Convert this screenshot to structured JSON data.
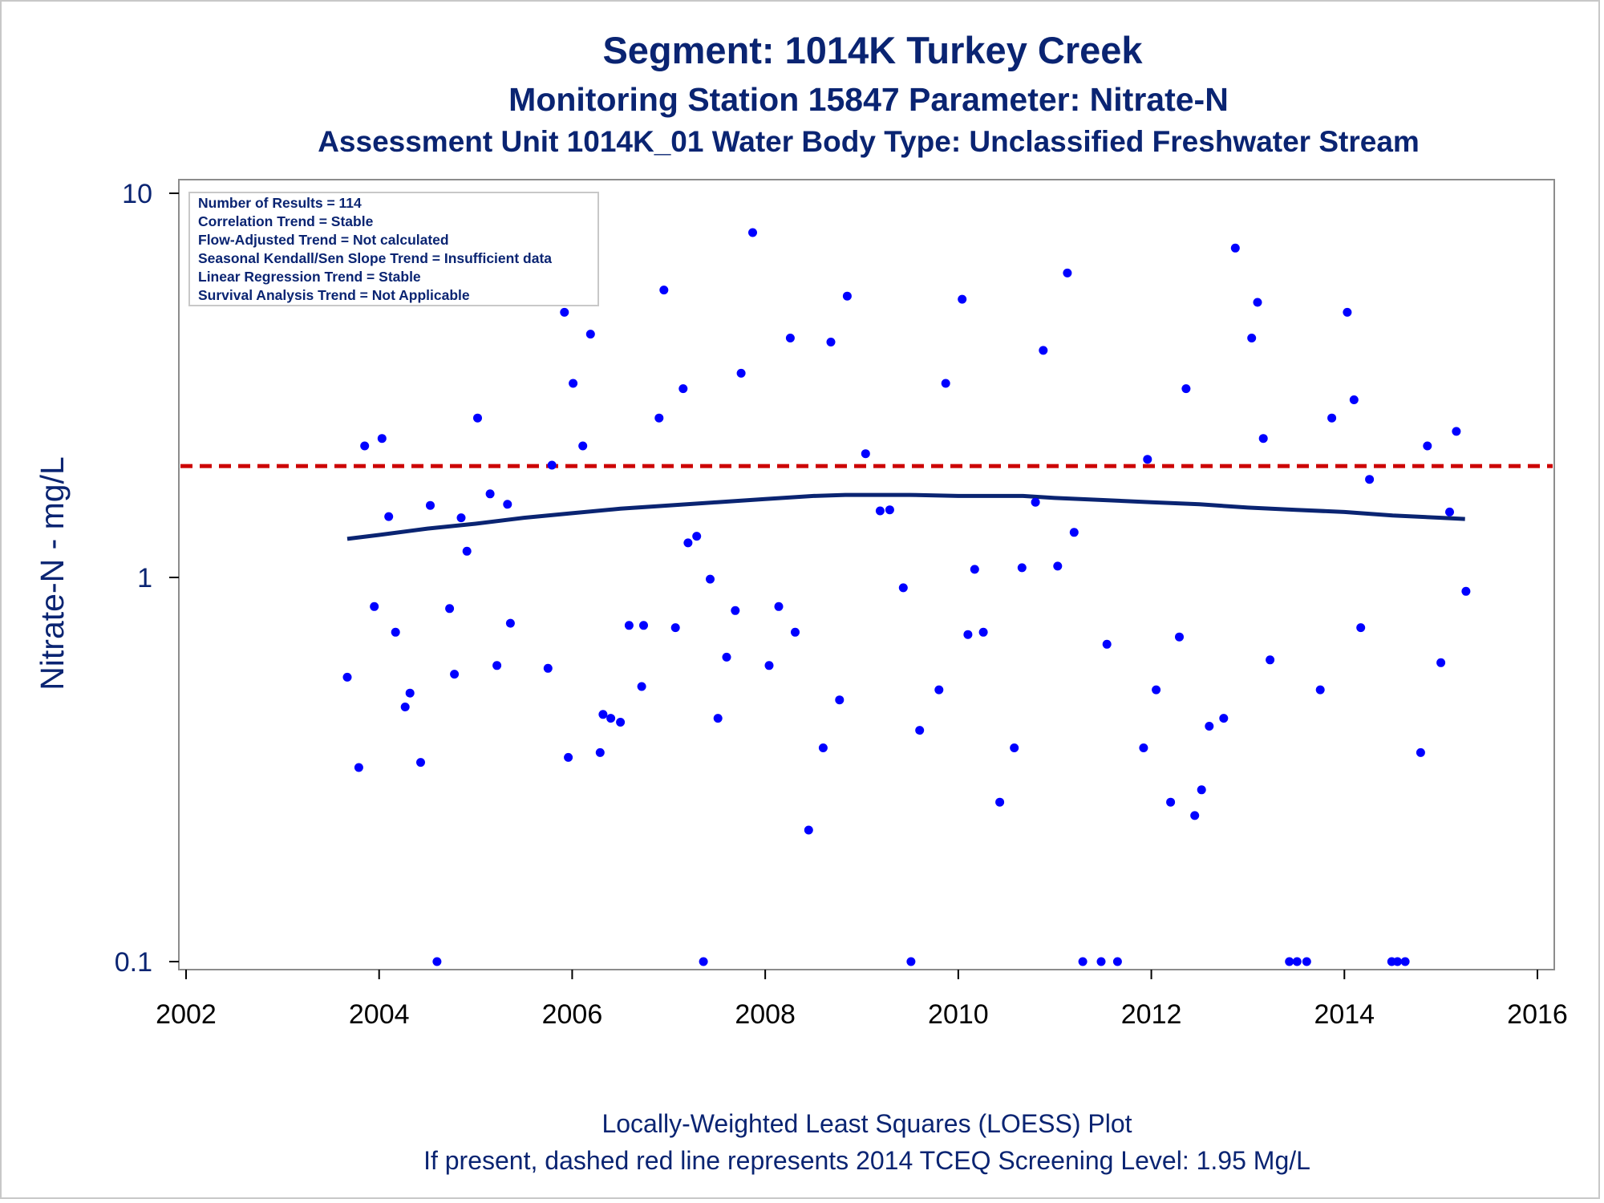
{
  "chart_data": {
    "type": "scatter",
    "title": "Segment: 1014K  Turkey Creek",
    "subtitle": "Monitoring Station 15847 Parameter: Nitrate-N",
    "subtitle2": "Assessment Unit 1014K_01   Water Body Type: Unclassified Freshwater Stream",
    "xlabel": "",
    "ylabel": "Nitrate-N - mg/L",
    "yscale": "log",
    "xlim": [
      2002,
      2016
    ],
    "ylim": [
      0.1,
      10
    ],
    "xticks": [
      "2002",
      "2004",
      "2006",
      "2008",
      "2010",
      "2012",
      "2014",
      "2016"
    ],
    "yticks": [
      "0.1",
      "1",
      "10"
    ],
    "legend_lines": [
      "Number of Results = 114",
      "Correlation Trend = Stable",
      "Flow-Adjusted Trend = Not calculated",
      "Seasonal Kendall/Sen Slope Trend = Insufficient data",
      "Linear Regression Trend = Stable",
      "Survival Analysis Trend = Not Applicable"
    ],
    "legend_placement": "top-left",
    "footnotes": [
      "Locally-Weighted Least Squares (LOESS) Plot",
      "If present, dashed red line represents 2014 TCEQ Screening Level: 1.95 Mg/L"
    ],
    "screening_level": 1.95,
    "colors": {
      "points": "#0000ff",
      "loess": "#0a2472",
      "screening": "#cc0000",
      "text": "#0a2472"
    },
    "loess": [
      [
        2003.67,
        1.26
      ],
      [
        2004.0,
        1.29
      ],
      [
        2004.5,
        1.34
      ],
      [
        2005.0,
        1.38
      ],
      [
        2005.5,
        1.43
      ],
      [
        2006.0,
        1.47
      ],
      [
        2006.5,
        1.51
      ],
      [
        2007.0,
        1.54
      ],
      [
        2007.5,
        1.57
      ],
      [
        2008.0,
        1.6
      ],
      [
        2008.5,
        1.63
      ],
      [
        2008.83,
        1.64
      ],
      [
        2009.5,
        1.64
      ],
      [
        2010.0,
        1.63
      ],
      [
        2010.67,
        1.63
      ],
      [
        2011.0,
        1.61
      ],
      [
        2011.5,
        1.59
      ],
      [
        2012.0,
        1.57
      ],
      [
        2012.5,
        1.55
      ],
      [
        2013.0,
        1.52
      ],
      [
        2013.5,
        1.5
      ],
      [
        2014.0,
        1.48
      ],
      [
        2014.5,
        1.45
      ],
      [
        2015.0,
        1.43
      ],
      [
        2015.25,
        1.42
      ]
    ],
    "points": [
      [
        2003.67,
        0.55
      ],
      [
        2003.79,
        0.32
      ],
      [
        2003.85,
        2.2
      ],
      [
        2003.95,
        0.84
      ],
      [
        2004.03,
        2.3
      ],
      [
        2004.1,
        1.44
      ],
      [
        2004.17,
        0.72
      ],
      [
        2004.27,
        0.46
      ],
      [
        2004.32,
        0.5
      ],
      [
        2004.43,
        0.33
      ],
      [
        2004.53,
        1.54
      ],
      [
        2004.6,
        0.1
      ],
      [
        2004.73,
        0.83
      ],
      [
        2004.78,
        0.56
      ],
      [
        2004.85,
        1.43
      ],
      [
        2004.91,
        1.17
      ],
      [
        2005.02,
        2.6
      ],
      [
        2005.15,
        1.65
      ],
      [
        2005.22,
        0.59
      ],
      [
        2005.33,
        1.55
      ],
      [
        2005.36,
        0.76
      ],
      [
        2005.75,
        0.58
      ],
      [
        2005.79,
        1.96
      ],
      [
        2005.92,
        4.9
      ],
      [
        2005.96,
        0.34
      ],
      [
        2006.01,
        3.2
      ],
      [
        2006.11,
        2.2
      ],
      [
        2006.19,
        4.3
      ],
      [
        2006.29,
        0.35
      ],
      [
        2006.32,
        0.44
      ],
      [
        2006.4,
        0.43
      ],
      [
        2006.5,
        0.42
      ],
      [
        2006.59,
        0.75
      ],
      [
        2006.72,
        0.52
      ],
      [
        2006.74,
        0.75
      ],
      [
        2006.9,
        2.6
      ],
      [
        2006.95,
        5.6
      ],
      [
        2007.07,
        0.74
      ],
      [
        2007.15,
        3.1
      ],
      [
        2007.2,
        1.23
      ],
      [
        2007.29,
        1.28
      ],
      [
        2007.36,
        0.1
      ],
      [
        2007.43,
        0.99
      ],
      [
        2007.51,
        0.43
      ],
      [
        2007.6,
        0.62
      ],
      [
        2007.69,
        0.82
      ],
      [
        2007.75,
        3.4
      ],
      [
        2007.87,
        7.9
      ],
      [
        2008.04,
        0.59
      ],
      [
        2008.14,
        0.84
      ],
      [
        2008.26,
        4.2
      ],
      [
        2008.31,
        0.72
      ],
      [
        2008.45,
        0.22
      ],
      [
        2008.6,
        0.36
      ],
      [
        2008.68,
        4.1
      ],
      [
        2008.77,
        0.48
      ],
      [
        2008.85,
        5.4
      ],
      [
        2009.04,
        2.1
      ],
      [
        2009.19,
        1.49
      ],
      [
        2009.29,
        1.5
      ],
      [
        2009.43,
        0.94
      ],
      [
        2009.51,
        0.1
      ],
      [
        2009.6,
        0.4
      ],
      [
        2009.8,
        0.51
      ],
      [
        2009.87,
        3.2
      ],
      [
        2010.04,
        5.3
      ],
      [
        2010.1,
        0.71
      ],
      [
        2010.17,
        1.05
      ],
      [
        2010.26,
        0.72
      ],
      [
        2010.43,
        0.26
      ],
      [
        2010.58,
        0.36
      ],
      [
        2010.66,
        1.06
      ],
      [
        2010.8,
        1.57
      ],
      [
        2010.88,
        3.9
      ],
      [
        2011.03,
        1.07
      ],
      [
        2011.13,
        6.2
      ],
      [
        2011.2,
        1.31
      ],
      [
        2011.29,
        0.1
      ],
      [
        2011.48,
        0.1
      ],
      [
        2011.54,
        0.67
      ],
      [
        2011.65,
        0.1
      ],
      [
        2011.92,
        0.36
      ],
      [
        2011.96,
        2.03
      ],
      [
        2012.05,
        0.51
      ],
      [
        2012.2,
        0.26
      ],
      [
        2012.29,
        0.7
      ],
      [
        2012.36,
        3.1
      ],
      [
        2012.45,
        0.24
      ],
      [
        2012.52,
        0.28
      ],
      [
        2012.6,
        0.41
      ],
      [
        2012.75,
        0.43
      ],
      [
        2012.87,
        7.2
      ],
      [
        2013.04,
        4.2
      ],
      [
        2013.1,
        5.2
      ],
      [
        2013.16,
        2.3
      ],
      [
        2013.23,
        0.61
      ],
      [
        2013.43,
        0.1
      ],
      [
        2013.51,
        0.1
      ],
      [
        2013.61,
        0.1
      ],
      [
        2013.75,
        0.51
      ],
      [
        2013.87,
        2.6
      ],
      [
        2014.03,
        4.9
      ],
      [
        2014.1,
        2.9
      ],
      [
        2014.17,
        0.74
      ],
      [
        2014.26,
        1.8
      ],
      [
        2014.49,
        0.1
      ],
      [
        2014.55,
        0.1
      ],
      [
        2014.63,
        0.1
      ],
      [
        2014.79,
        0.35
      ],
      [
        2014.86,
        2.2
      ],
      [
        2015.0,
        0.6
      ],
      [
        2015.09,
        1.48
      ],
      [
        2015.16,
        2.4
      ],
      [
        2015.26,
        0.92
      ]
    ]
  }
}
